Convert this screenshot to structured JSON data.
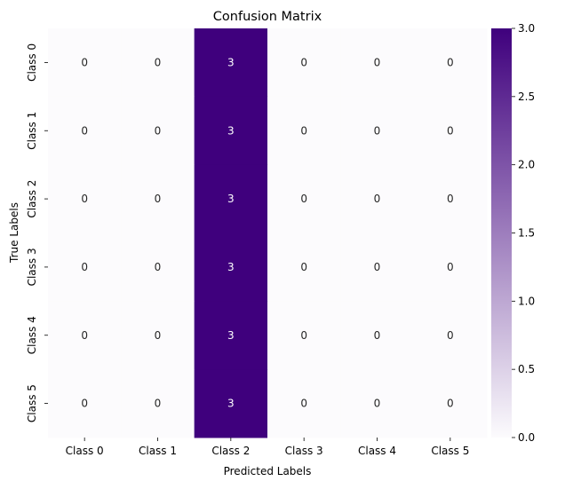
{
  "chart_data": {
    "type": "heatmap",
    "title": "Confusion Matrix",
    "xlabel": "Predicted Labels",
    "ylabel": "True Labels",
    "x_categories": [
      "Class 0",
      "Class 1",
      "Class 2",
      "Class 3",
      "Class 4",
      "Class 5"
    ],
    "y_categories": [
      "Class 0",
      "Class 1",
      "Class 2",
      "Class 3",
      "Class 4",
      "Class 5"
    ],
    "values": [
      [
        0,
        0,
        3,
        0,
        0,
        0
      ],
      [
        0,
        0,
        3,
        0,
        0,
        0
      ],
      [
        0,
        0,
        3,
        0,
        0,
        0
      ],
      [
        0,
        0,
        3,
        0,
        0,
        0
      ],
      [
        0,
        0,
        3,
        0,
        0,
        0
      ],
      [
        0,
        0,
        3,
        0,
        0,
        0
      ]
    ],
    "colorbar": {
      "min": 0,
      "max": 3,
      "ticks": [
        "0.0",
        "0.5",
        "1.0",
        "1.5",
        "2.0",
        "2.5",
        "3.0"
      ]
    },
    "colormap": {
      "name": "Purples",
      "low": "#fcfbfd",
      "high": "#3f007d"
    },
    "annotations": {
      "on": true,
      "dark_text_color": "#262626",
      "light_text_color": "#ffffff"
    }
  }
}
